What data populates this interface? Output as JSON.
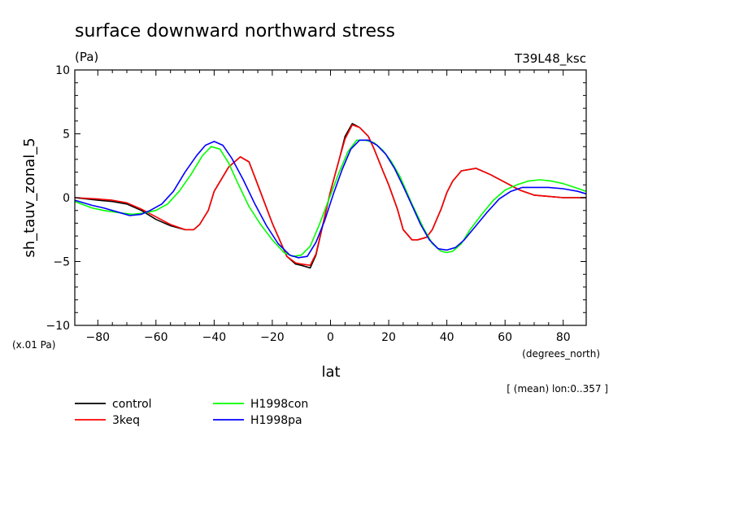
{
  "chart_data": {
    "type": "line",
    "title": "surface downward northward stress",
    "units_label": "(Pa)",
    "run_label": "T39L48_ksc",
    "ylabel": "sh_tauv_zonal_5",
    "xlabel": "lat",
    "x_units": "(degrees_north)",
    "y_scale_note": "(x.01 Pa)",
    "footnote": "[ (mean) lon:0..357 ]",
    "xlim": [
      -87.9,
      87.9
    ],
    "ylim": [
      -10,
      10
    ],
    "x_ticks": [
      -80,
      -60,
      -40,
      -20,
      0,
      20,
      40,
      60,
      80
    ],
    "y_ticks": [
      -10,
      -5,
      0,
      5,
      10
    ],
    "x_tick_labels": [
      "−80",
      "−60",
      "−40",
      "−20",
      "0",
      "20",
      "40",
      "60",
      "80"
    ],
    "y_tick_labels": [
      "−10",
      "−5",
      "0",
      "5",
      "10"
    ],
    "legend_position": "bottom-left",
    "series": [
      {
        "name": "control",
        "color": "#000000",
        "x": [
          -87.9,
          -80,
          -75,
          -70,
          -65,
          -60,
          -55,
          -50,
          -47,
          -45,
          -42,
          -40,
          -35,
          -31,
          -28,
          -25,
          -20,
          -15,
          -12,
          -10,
          -7,
          -5,
          -2,
          0,
          3,
          5,
          7.5,
          10,
          13,
          15,
          18,
          20,
          23,
          25,
          28,
          30,
          33,
          35,
          38,
          40,
          42,
          45,
          50,
          55,
          60,
          65,
          70,
          75,
          80,
          87.9
        ],
        "values": [
          0,
          -0.2,
          -0.3,
          -0.5,
          -1,
          -1.7,
          -2.2,
          -2.5,
          -2.5,
          -2.1,
          -1,
          0.5,
          2.4,
          3.2,
          2.8,
          1,
          -2,
          -4.6,
          -5.2,
          -5.3,
          -5.5,
          -4.5,
          -1.5,
          0.5,
          3,
          4.8,
          5.8,
          5.5,
          4.8,
          3.8,
          2.1,
          1,
          -0.9,
          -2.5,
          -3.3,
          -3.3,
          -3.1,
          -2.5,
          -0.9,
          0.4,
          1.3,
          2.1,
          2.3,
          1.8,
          1.2,
          0.6,
          0.2,
          0.1,
          0,
          0
        ]
      },
      {
        "name": "3keq",
        "color": "#ff0000",
        "x": [
          -87.9,
          -80,
          -75,
          -70,
          -65,
          -60,
          -55,
          -50,
          -47,
          -45,
          -42,
          -40,
          -35,
          -31,
          -28,
          -25,
          -20,
          -15,
          -12,
          -10,
          -7,
          -5,
          -2,
          0,
          3,
          5,
          7.5,
          10,
          13,
          15,
          18,
          20,
          23,
          25,
          28,
          30,
          33,
          35,
          38,
          40,
          42,
          45,
          50,
          55,
          60,
          65,
          70,
          75,
          80,
          87.9
        ],
        "values": [
          0,
          -0.1,
          -0.2,
          -0.4,
          -0.9,
          -1.5,
          -2.1,
          -2.5,
          -2.5,
          -2.1,
          -1,
          0.5,
          2.4,
          3.2,
          2.8,
          1,
          -2,
          -4.6,
          -5.1,
          -5.2,
          -5.3,
          -4.4,
          -1.5,
          0.5,
          3,
          4.6,
          5.7,
          5.5,
          4.8,
          3.8,
          2.1,
          1,
          -0.9,
          -2.5,
          -3.3,
          -3.3,
          -3.1,
          -2.5,
          -0.9,
          0.4,
          1.3,
          2.1,
          2.3,
          1.8,
          1.2,
          0.6,
          0.2,
          0.1,
          0,
          0
        ]
      },
      {
        "name": "H1998con",
        "color": "#00ff00",
        "x": [
          -87.9,
          -82,
          -78,
          -72,
          -68,
          -64,
          -60,
          -56,
          -52,
          -48,
          -44,
          -41,
          -38,
          -35,
          -32,
          -28,
          -24,
          -20,
          -16,
          -13,
          -10,
          -7,
          -4,
          0,
          3,
          6,
          9,
          12,
          15,
          18,
          21,
          24,
          28,
          32,
          35,
          38,
          40,
          42,
          45,
          48,
          52,
          56,
          60,
          64,
          68,
          72,
          76,
          80,
          84,
          87.9
        ],
        "values": [
          -0.3,
          -0.8,
          -1,
          -1.2,
          -1.3,
          -1.2,
          -1,
          -0.5,
          0.5,
          1.8,
          3.3,
          4,
          3.8,
          2.7,
          1.2,
          -0.7,
          -2.1,
          -3.3,
          -4.3,
          -4.6,
          -4.5,
          -3.8,
          -2.2,
          0.2,
          2,
          3.6,
          4.5,
          4.5,
          4.3,
          3.7,
          2.8,
          1.6,
          -0.5,
          -2.4,
          -3.6,
          -4.2,
          -4.3,
          -4.2,
          -3.6,
          -2.5,
          -1.3,
          -0.2,
          0.6,
          1,
          1.3,
          1.4,
          1.3,
          1.1,
          0.8,
          0.5
        ]
      },
      {
        "name": "H1998pa",
        "color": "#0000ff",
        "x": [
          -87.9,
          -82,
          -78,
          -72,
          -69,
          -65,
          -62,
          -58,
          -54,
          -50,
          -46,
          -43,
          -40,
          -37,
          -34,
          -30,
          -26,
          -22,
          -18,
          -14,
          -11,
          -8,
          -5,
          -2,
          1,
          4,
          7,
          10,
          13,
          16,
          19,
          22,
          25,
          28,
          31,
          34,
          37,
          40,
          43,
          46,
          50,
          54,
          58,
          62,
          66,
          70,
          75,
          80,
          85,
          87.9
        ],
        "values": [
          -0.2,
          -0.6,
          -0.8,
          -1.2,
          -1.4,
          -1.3,
          -1,
          -0.5,
          0.5,
          2,
          3.3,
          4.1,
          4.4,
          4.1,
          3.1,
          1.4,
          -0.5,
          -2.2,
          -3.6,
          -4.5,
          -4.7,
          -4.6,
          -3.5,
          -1.8,
          0.3,
          2.2,
          3.8,
          4.5,
          4.5,
          4.1,
          3.4,
          2.3,
          0.9,
          -0.6,
          -2.1,
          -3.3,
          -4,
          -4.1,
          -3.9,
          -3.3,
          -2.2,
          -1.1,
          -0.1,
          0.5,
          0.8,
          0.8,
          0.8,
          0.7,
          0.5,
          0.3
        ]
      }
    ]
  }
}
